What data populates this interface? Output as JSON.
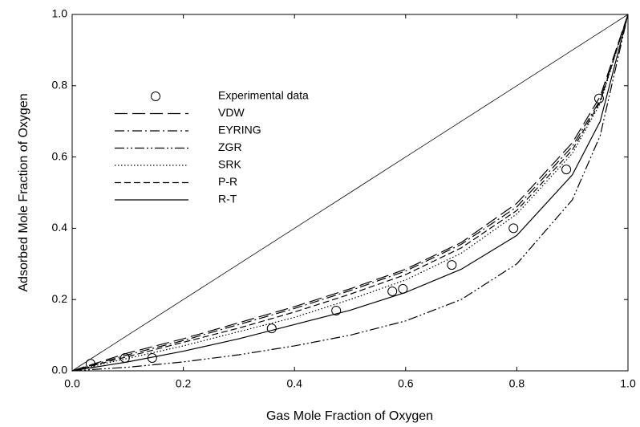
{
  "chart_data": {
    "type": "line",
    "xlabel": "Gas Mole Fraction of Oxygen",
    "ylabel": "Adsorbed Mole Fraction of Oxygen",
    "xlim": [
      0,
      1
    ],
    "ylim": [
      0,
      1
    ],
    "xticks": [
      {
        "value": 0,
        "label": "0.0"
      },
      {
        "value": 0.2,
        "label": "0.2"
      },
      {
        "value": 0.4,
        "label": "0.4"
      },
      {
        "value": 0.6,
        "label": "0.6"
      },
      {
        "value": 0.8,
        "label": "0.8"
      },
      {
        "value": 1,
        "label": "1.0"
      }
    ],
    "yticks": [
      {
        "value": 0,
        "label": "0.0"
      },
      {
        "value": 0.2,
        "label": "0.2"
      },
      {
        "value": 0.4,
        "label": "0.4"
      },
      {
        "value": 0.6,
        "label": "0.6"
      },
      {
        "value": 0.8,
        "label": "0.8"
      },
      {
        "value": 1,
        "label": "1.0"
      }
    ],
    "legend": "upper left",
    "x": [
      0,
      0.1,
      0.2,
      0.3,
      0.4,
      0.5,
      0.6,
      0.7,
      0.8,
      0.9,
      0.95,
      1
    ],
    "series": [
      {
        "name": "Experimental data",
        "color": "#000000",
        "marker": "circle",
        "x": [
          0.033,
          0.095,
          0.144,
          0.359,
          0.475,
          0.576,
          0.595,
          0.683,
          0.794,
          0.889,
          0.948
        ],
        "values": [
          0.02,
          0.036,
          0.036,
          0.119,
          0.169,
          0.223,
          0.23,
          0.297,
          0.4,
          0.565,
          0.764
        ]
      },
      {
        "name": "VDW",
        "color": "#000000",
        "dash": "16,6",
        "values": [
          0,
          0.05,
          0.09,
          0.135,
          0.18,
          0.23,
          0.285,
          0.36,
          0.47,
          0.64,
          0.77,
          1
        ]
      },
      {
        "name": "EYRING",
        "color": "#000000",
        "dash": "12,4,2,4",
        "values": [
          0,
          0.045,
          0.085,
          0.13,
          0.175,
          0.225,
          0.28,
          0.355,
          0.46,
          0.63,
          0.76,
          1
        ]
      },
      {
        "name": "ZGR",
        "color": "#000000",
        "dash": "12,3,2,3,2,3",
        "values": [
          0,
          0.01,
          0.025,
          0.045,
          0.07,
          0.1,
          0.14,
          0.2,
          0.3,
          0.48,
          0.66,
          1
        ]
      },
      {
        "name": "SRK",
        "color": "#000000",
        "dash": "1.5,2.5",
        "values": [
          0,
          0.035,
          0.07,
          0.11,
          0.15,
          0.2,
          0.255,
          0.33,
          0.44,
          0.61,
          0.75,
          1
        ]
      },
      {
        "name": "P-R",
        "color": "#000000",
        "dash": "8,4",
        "values": [
          0,
          0.04,
          0.08,
          0.12,
          0.165,
          0.215,
          0.27,
          0.345,
          0.45,
          0.62,
          0.755,
          1
        ]
      },
      {
        "name": "R-T",
        "color": "#000000",
        "values": [
          0,
          0.025,
          0.055,
          0.09,
          0.13,
          0.17,
          0.22,
          0.285,
          0.38,
          0.55,
          0.7,
          1
        ]
      },
      {
        "color": "#000000",
        "width": 0.8,
        "values": [
          0,
          0.1,
          0.2,
          0.3,
          0.4,
          0.5,
          0.6,
          0.7,
          0.8,
          0.9,
          0.95,
          1
        ]
      }
    ]
  }
}
